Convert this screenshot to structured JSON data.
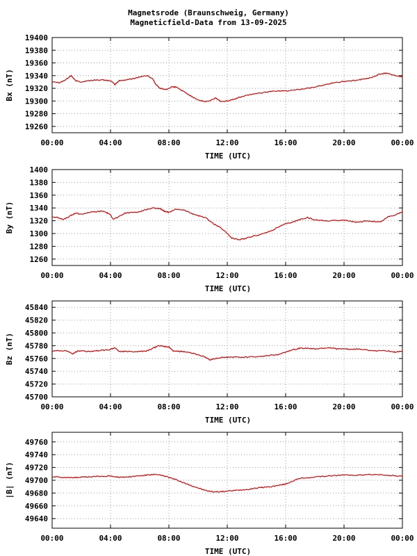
{
  "header": {
    "title": "Magnetsrode (Braunschweig, Germany)",
    "subtitle": "Magneticfield-Data from 13-09-2025"
  },
  "colors": {
    "series": "#d40000",
    "grid": "#9a9a9a",
    "frame": "#000000"
  },
  "chart_data": [
    {
      "type": "line",
      "ylabel": "Bx (nT)",
      "xlabel": "TIME (UTC)",
      "xticks": [
        "00:00",
        "04:00",
        "08:00",
        "12:00",
        "16:00",
        "20:00",
        "00:00"
      ],
      "xlim": [
        0,
        24
      ],
      "ylim": [
        19250,
        19400
      ],
      "yticks": [
        19260,
        19280,
        19300,
        19320,
        19340,
        19360,
        19380,
        19400
      ],
      "grid": true,
      "series": [
        {
          "x": [
            0,
            0.5,
            0.9,
            1.3,
            1.6,
            2.0,
            2.5,
            3.0,
            3.5,
            4.0,
            4.3,
            4.6,
            5.0,
            5.5,
            6.0,
            6.5,
            6.9,
            7.1,
            7.4,
            7.8,
            8.2,
            8.5,
            9.0,
            9.5,
            10.0,
            10.4,
            10.8,
            11.2,
            11.5,
            12.0,
            12.5,
            13.0,
            13.5,
            14.0,
            15.0,
            16.0,
            17.0,
            18.0,
            19.0,
            20.0,
            21.0,
            21.5,
            22.0,
            22.5,
            23.0,
            23.5,
            24.0
          ],
          "values": [
            19331,
            19329,
            19333,
            19340,
            19332,
            19330,
            19332,
            19333,
            19333,
            19332,
            19326,
            19332,
            19333,
            19335,
            19338,
            19340,
            19335,
            19326,
            19320,
            19318,
            19322,
            19322,
            19315,
            19308,
            19302,
            19299,
            19300,
            19305,
            19300,
            19300,
            19303,
            19307,
            19310,
            19312,
            19315,
            19316,
            19318,
            19322,
            19327,
            19331,
            19333,
            19335,
            19338,
            19343,
            19344,
            19340,
            19338
          ]
        }
      ]
    },
    {
      "type": "line",
      "ylabel": "By (nT)",
      "xlabel": "TIME (UTC)",
      "xticks": [
        "00:00",
        "04:00",
        "08:00",
        "12:00",
        "16:00",
        "20:00",
        "00:00"
      ],
      "xlim": [
        0,
        24
      ],
      "ylim": [
        1250,
        1400
      ],
      "yticks": [
        1260,
        1280,
        1300,
        1320,
        1340,
        1360,
        1380,
        1400
      ],
      "grid": true,
      "series": [
        {
          "x": [
            0,
            0.4,
            0.8,
            1.3,
            1.6,
            2.0,
            2.5,
            3.0,
            3.5,
            3.9,
            4.2,
            4.5,
            5.0,
            5.5,
            6.0,
            6.5,
            7.0,
            7.4,
            7.7,
            8.0,
            8.5,
            9.0,
            9.5,
            10.0,
            10.5,
            11.0,
            11.5,
            12.0,
            12.3,
            12.8,
            13.2,
            13.8,
            14.5,
            15.0,
            15.5,
            16.0,
            16.5,
            17.0,
            17.5,
            18.0,
            19.0,
            20.0,
            20.5,
            21.0,
            21.5,
            22.0,
            22.5,
            23.0,
            23.5,
            24.0
          ],
          "values": [
            1326,
            1325,
            1322,
            1328,
            1332,
            1330,
            1333,
            1334,
            1335,
            1331,
            1323,
            1325,
            1332,
            1333,
            1334,
            1338,
            1340,
            1339,
            1335,
            1333,
            1338,
            1337,
            1332,
            1328,
            1325,
            1316,
            1310,
            1300,
            1293,
            1290,
            1292,
            1296,
            1300,
            1304,
            1310,
            1315,
            1318,
            1322,
            1325,
            1321,
            1320,
            1321,
            1319,
            1317,
            1320,
            1319,
            1318,
            1326,
            1329,
            1334
          ]
        }
      ]
    },
    {
      "type": "line",
      "ylabel": "Bz (nT)",
      "xlabel": "TIME (UTC)",
      "xticks": [
        "00:00",
        "04:00",
        "08:00",
        "12:00",
        "16:00",
        "20:00",
        "00:00"
      ],
      "xlim": [
        0,
        24
      ],
      "ylim": [
        45700,
        45850
      ],
      "yticks": [
        45700,
        45720,
        45740,
        45760,
        45780,
        45800,
        45820,
        45840
      ],
      "grid": true,
      "series": [
        {
          "x": [
            0,
            0.5,
            1.0,
            1.4,
            1.7,
            2.0,
            2.5,
            3.0,
            3.5,
            4.0,
            4.3,
            4.6,
            5.0,
            5.5,
            6.0,
            6.5,
            6.9,
            7.3,
            7.6,
            8.0,
            8.3,
            8.7,
            9.0,
            9.5,
            10.0,
            10.5,
            10.8,
            11.2,
            11.5,
            12.0,
            12.5,
            13.0,
            14.0,
            15.0,
            15.5,
            16.0,
            16.5,
            17.0,
            17.5,
            18.0,
            18.5,
            19.0,
            19.5,
            20.0,
            20.5,
            21.0,
            22.0,
            23.0,
            23.5,
            24.0
          ],
          "values": [
            45772,
            45772,
            45772,
            45767,
            45771,
            45772,
            45771,
            45772,
            45773,
            45774,
            45777,
            45771,
            45771,
            45771,
            45771,
            45772,
            45776,
            45780,
            45779,
            45778,
            45772,
            45771,
            45771,
            45769,
            45766,
            45762,
            45758,
            45760,
            45761,
            45762,
            45762,
            45762,
            45763,
            45765,
            45766,
            45770,
            45774,
            45776,
            45776,
            45775,
            45776,
            45777,
            45775,
            45775,
            45774,
            45775,
            45772,
            45772,
            45770,
            45771
          ]
        }
      ]
    },
    {
      "type": "line",
      "ylabel": "|B| (nT)",
      "xlabel": "TIME (UTC)",
      "xticks": [
        "00:00",
        "04:00",
        "08:00",
        "12:00",
        "16:00",
        "20:00",
        "00:00"
      ],
      "xlim": [
        0,
        24
      ],
      "ylim": [
        49625,
        49775
      ],
      "yticks": [
        49640,
        49660,
        49680,
        49700,
        49720,
        49740,
        49760
      ],
      "grid": true,
      "series": [
        {
          "x": [
            0,
            0.5,
            1.0,
            1.5,
            2.0,
            2.5,
            3.0,
            3.5,
            4.0,
            4.5,
            5.0,
            5.5,
            6.0,
            6.5,
            7.0,
            7.4,
            7.8,
            8.2,
            8.6,
            9.0,
            9.5,
            10.0,
            10.5,
            11.0,
            11.5,
            12.0,
            12.5,
            13.0,
            13.5,
            14.0,
            14.5,
            15.0,
            15.5,
            16.0,
            16.5,
            17.0,
            18.0,
            19.0,
            20.0,
            21.0,
            22.0,
            23.0,
            23.5,
            24.0
          ],
          "values": [
            49705,
            49705,
            49704,
            49704,
            49705,
            49705,
            49706,
            49706,
            49707,
            49705,
            49705,
            49706,
            49707,
            49708,
            49709,
            49708,
            49706,
            49703,
            49700,
            49696,
            49692,
            49688,
            49684,
            49682,
            49682,
            49683,
            49684,
            49685,
            49686,
            49688,
            49689,
            49690,
            49692,
            49694,
            49699,
            49703,
            49705,
            49707,
            49708,
            49708,
            49709,
            49708,
            49707,
            49706
          ]
        }
      ]
    }
  ]
}
